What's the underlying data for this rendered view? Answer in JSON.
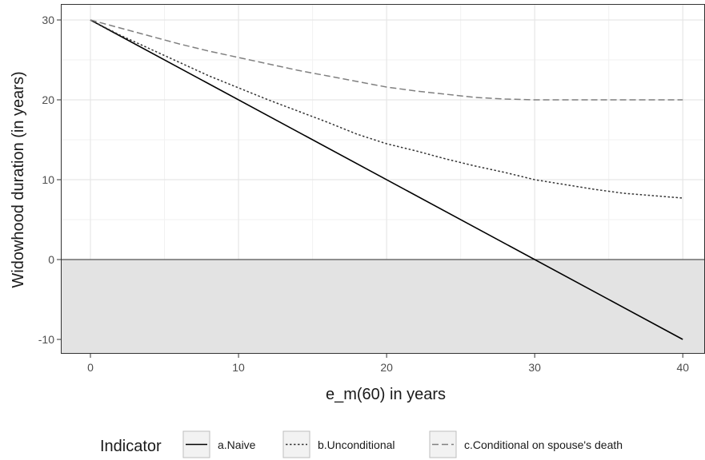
{
  "chart_data": {
    "type": "line",
    "xlabel": "e_m(60) in years",
    "ylabel": "Widowhood duration (in years)",
    "xlim": [
      -2,
      41.5
    ],
    "ylim": [
      -11.8,
      32
    ],
    "x_ticks": [
      0,
      10,
      20,
      30,
      40
    ],
    "y_ticks": [
      -10,
      0,
      10,
      20,
      30
    ],
    "x_tick_labels": [
      "0",
      "10",
      "20",
      "30",
      "40"
    ],
    "y_tick_labels": [
      "-10",
      "0",
      "10",
      "20",
      "30"
    ],
    "grid": true,
    "negative_region_shaded": true,
    "zero_line": 0,
    "legend": {
      "title": "Indicator",
      "placement": "bottom"
    },
    "series": [
      {
        "name": "a.Naive",
        "line_style": "solid",
        "color": "#000000",
        "x": [
          0,
          40
        ],
        "y": [
          30,
          -10
        ]
      },
      {
        "name": "b.Unconditional",
        "line_style": "dotted",
        "color": "#333333",
        "x": [
          0,
          2,
          4,
          6,
          8,
          10,
          12,
          14,
          16,
          18,
          20,
          22,
          24,
          26,
          28,
          30,
          32,
          34,
          36,
          38,
          40
        ],
        "y": [
          30,
          28.1,
          26.4,
          24.7,
          23.0,
          21.5,
          20.0,
          18.6,
          17.2,
          15.7,
          14.5,
          13.6,
          12.6,
          11.7,
          10.9,
          10.0,
          9.4,
          8.8,
          8.3,
          8.0,
          7.7
        ]
      },
      {
        "name": "c.Conditional on spouse's death",
        "line_style": "dashed",
        "color": "#808080",
        "x": [
          0,
          2,
          4,
          6,
          8,
          10,
          12,
          14,
          16,
          18,
          20,
          22,
          24,
          26,
          28,
          30,
          32,
          34,
          36,
          38,
          40
        ],
        "y": [
          30,
          29.0,
          28.0,
          27.0,
          26.1,
          25.3,
          24.5,
          23.7,
          23.0,
          22.3,
          21.6,
          21.1,
          20.7,
          20.3,
          20.1,
          20.0,
          20.0,
          20.0,
          20.0,
          20.0,
          20.0
        ]
      }
    ]
  }
}
